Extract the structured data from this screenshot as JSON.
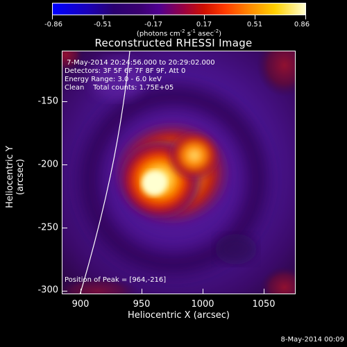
{
  "colorbar": {
    "tick_labels": [
      "-0.86",
      "-0.51",
      "-0.17",
      "0.17",
      "0.51",
      "0.86"
    ],
    "units_base": "(photons cm",
    "units_exp1": "-2",
    "units_mid1": " s",
    "units_exp2": "-1",
    "units_mid2": " asec",
    "units_exp3": "-2",
    "units_end": ")"
  },
  "title": "Reconstructed RHESSI Image",
  "overlay": {
    "time_range": " 7-May-2014 20:24:56.000 to 20:29:02.000",
    "detectors": "Detectors: 3F 5F 6F 7F 8F 9F, Att 0",
    "energy": "Energy Range: 3.0 - 6.0 keV",
    "clean": "Clean    Total counts: 1.75E+05",
    "peak": "Position of Peak = [964,-216]"
  },
  "axes": {
    "x_title": "Heliocentric X (arcsec)",
    "y_title": "Heliocentric Y (arcsec)",
    "x_ticks": [
      "900",
      "950",
      "1000",
      "1050"
    ],
    "y_ticks": [
      "-150",
      "-200",
      "-250",
      "-300"
    ]
  },
  "footer": {
    "date": "8-May-2014 00:09"
  },
  "colors": {
    "background": "#000000",
    "foreground": "#ffffff",
    "low": "#0000ff",
    "mid": "#500090",
    "high": "#ffffd0"
  }
}
